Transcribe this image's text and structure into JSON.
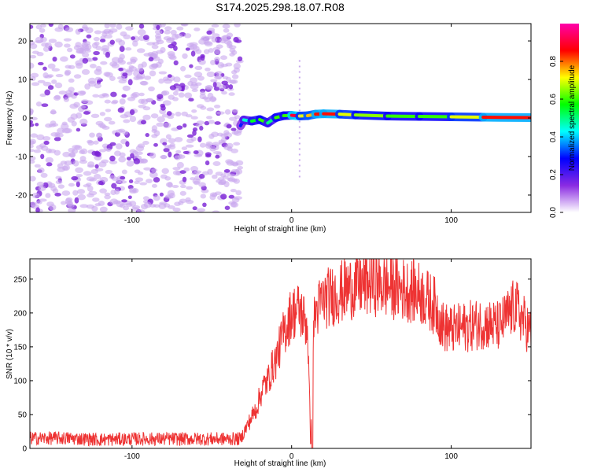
{
  "chart_data": [
    {
      "type": "heatmap",
      "title": "S174.2025.298.18.07.R08",
      "xlabel": "Height of straight line (km)",
      "ylabel": "Frequency (Hz)",
      "xlim": [
        -164,
        150
      ],
      "ylim": [
        -24.5,
        24.5
      ],
      "x_ticks": [
        -100,
        0,
        100
      ],
      "y_ticks": [
        -20,
        -10,
        0,
        10,
        20
      ],
      "noise_region_x": [
        -164,
        -32
      ],
      "signal_track": {
        "x": [
          -32,
          -30,
          -25,
          -20,
          -15,
          -10,
          -5,
          0,
          5,
          10,
          15,
          20,
          30,
          40,
          60,
          80,
          100,
          120,
          150
        ],
        "frequency": [
          -2,
          -0.5,
          -0.8,
          -0.4,
          -1.3,
          0.1,
          0.6,
          0.7,
          0.5,
          0.6,
          1.0,
          1.1,
          1.0,
          0.8,
          0.5,
          0.4,
          0.3,
          0.2,
          0.1
        ],
        "amplitude": [
          0.3,
          0.45,
          0.55,
          0.6,
          0.5,
          0.6,
          0.6,
          0.9,
          0.7,
          0.75,
          0.85,
          0.85,
          0.7,
          0.65,
          0.6,
          0.6,
          0.7,
          0.85,
          0.9
        ]
      },
      "colorbar": {
        "label": "Normalized spectral amplitude",
        "ticks": [
          "0.0",
          "0.2",
          "0.4",
          "0.6",
          "0.8"
        ],
        "colors": [
          "#ffffff",
          "#8a2be2",
          "#0000ff",
          "#00ffff",
          "#00ff00",
          "#ffff00",
          "#ff0000",
          "#ff00aa"
        ]
      }
    },
    {
      "type": "line",
      "title": "",
      "xlabel": "Height of straight line (km)",
      "ylabel": "SNR (10 * v/v)",
      "xlim": [
        -164,
        150
      ],
      "ylim": [
        0,
        280
      ],
      "x_ticks": [
        -100,
        0,
        100
      ],
      "y_ticks": [
        0,
        50,
        100,
        150,
        200,
        250
      ],
      "series": [
        {
          "name": "SNR",
          "color": "#ee3333",
          "x": [
            -164,
            -140,
            -120,
            -100,
            -80,
            -60,
            -40,
            -32,
            -22,
            -18,
            -15,
            -12,
            -10,
            -5,
            0,
            5,
            10,
            12,
            13,
            15,
            20,
            30,
            40,
            50,
            60,
            70,
            80,
            90,
            95,
            100,
            110,
            120,
            130,
            140,
            145,
            150
          ],
          "values": [
            15,
            15,
            13,
            14,
            14,
            14,
            14,
            14,
            60,
            90,
            100,
            120,
            130,
            170,
            200,
            205,
            180,
            0,
            170,
            200,
            220,
            230,
            240,
            245,
            240,
            235,
            230,
            210,
            180,
            175,
            180,
            185,
            180,
            210,
            190,
            170
          ]
        }
      ]
    }
  ]
}
